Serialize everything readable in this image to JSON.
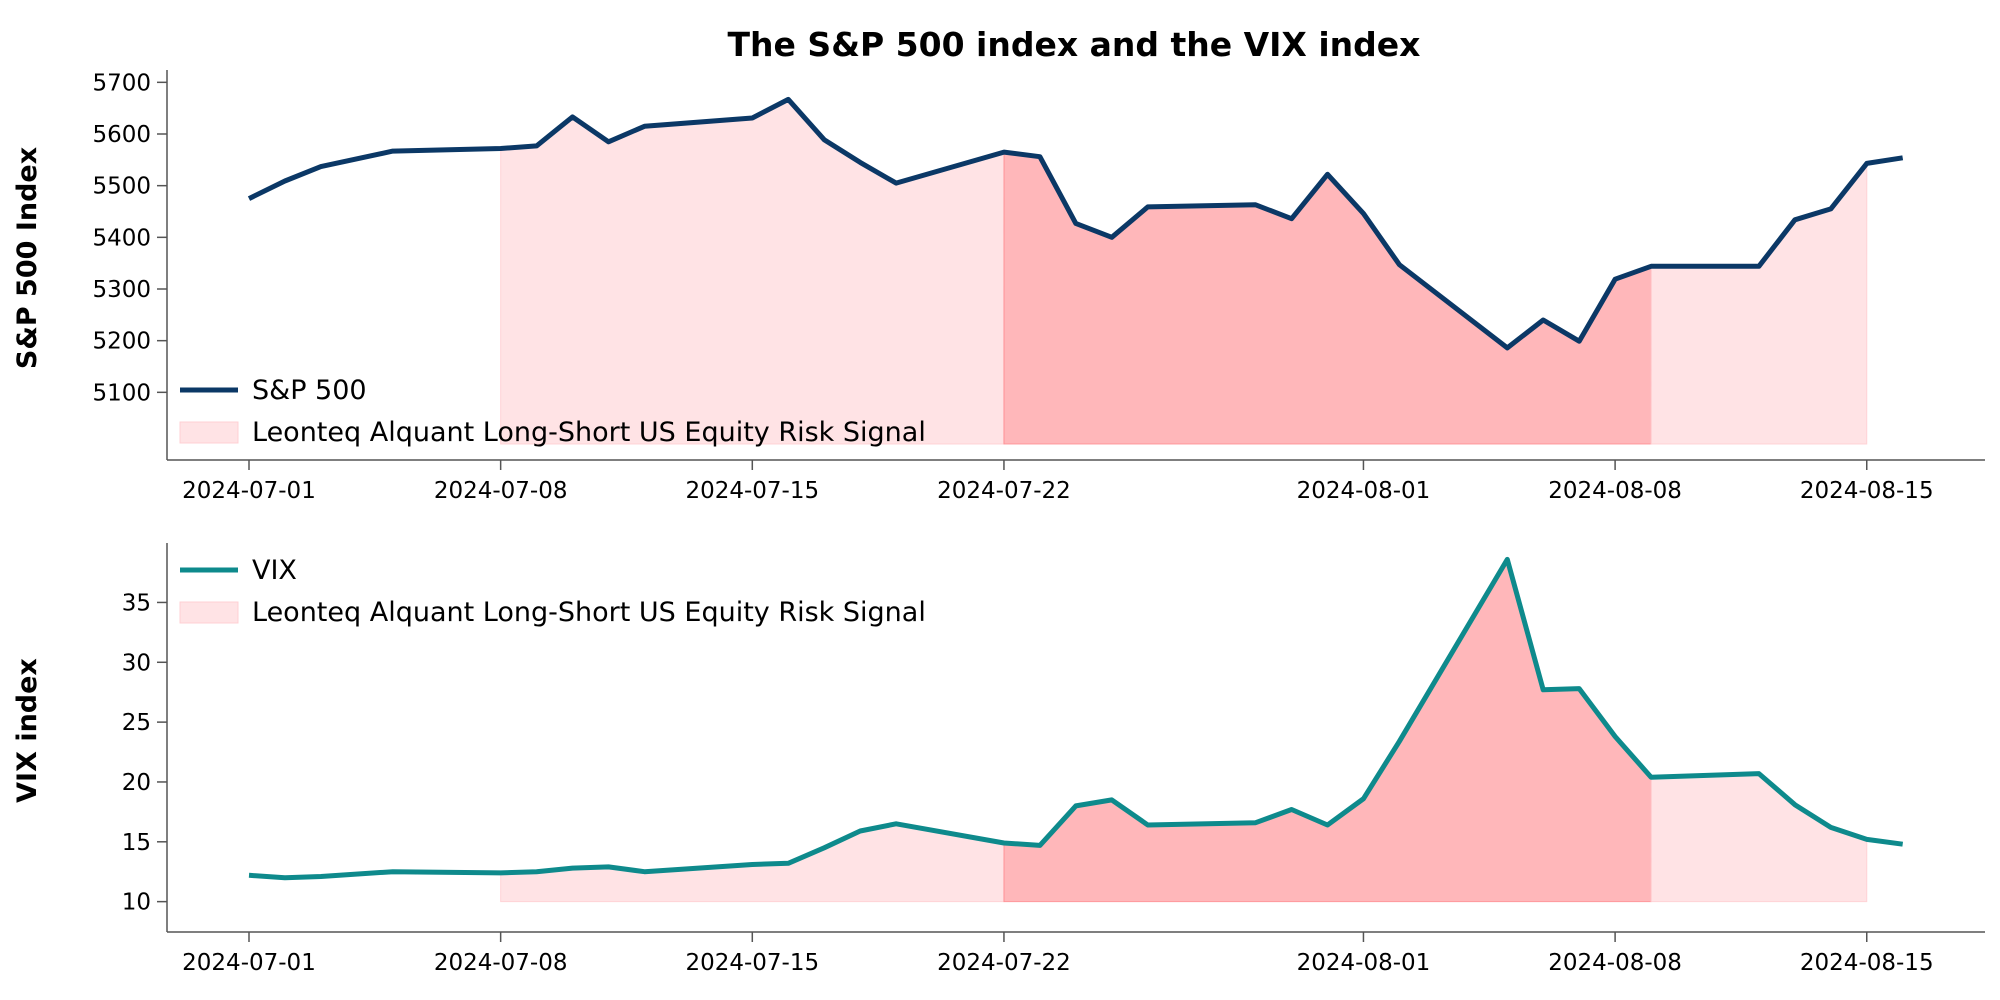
{
  "title": "The S&P 500 index and the VIX index",
  "colors": {
    "sp500": "#0b3866",
    "vix": "#0e8a8c",
    "signal_light": "#ffcccf",
    "signal_dark": "#ff8a8f"
  },
  "chart_data": [
    {
      "type": "line",
      "ylabel": "S&P 500 Index",
      "ylim": [
        5000,
        5720
      ],
      "yticks": [
        5100,
        5200,
        5300,
        5400,
        5500,
        5600,
        5700
      ],
      "x_ticks": [
        "2024-07-01",
        "2024-07-08",
        "2024-07-15",
        "2024-07-22",
        "2024-08-01",
        "2024-08-08",
        "2024-08-15"
      ],
      "legend": {
        "position": "lower-left",
        "line_label": "S&P 500",
        "band_label": "Leonteq Alquant Long-Short US Equity Risk Signal"
      },
      "series": [
        {
          "name": "S&P 500",
          "x": [
            "2024-07-01",
            "2024-07-02",
            "2024-07-03",
            "2024-07-05",
            "2024-07-08",
            "2024-07-09",
            "2024-07-10",
            "2024-07-11",
            "2024-07-12",
            "2024-07-15",
            "2024-07-16",
            "2024-07-17",
            "2024-07-18",
            "2024-07-19",
            "2024-07-22",
            "2024-07-23",
            "2024-07-24",
            "2024-07-25",
            "2024-07-26",
            "2024-07-29",
            "2024-07-30",
            "2024-07-31",
            "2024-08-01",
            "2024-08-02",
            "2024-08-05",
            "2024-08-06",
            "2024-08-07",
            "2024-08-08",
            "2024-08-09",
            "2024-08-12",
            "2024-08-13",
            "2024-08-14",
            "2024-08-15",
            "2024-08-16"
          ],
          "values": [
            5475,
            5509,
            5537,
            5567,
            5572,
            5577,
            5633,
            5585,
            5615,
            5631,
            5667,
            5589,
            5545,
            5505,
            5565,
            5556,
            5427,
            5400,
            5459,
            5463,
            5436,
            5522,
            5446,
            5347,
            5186,
            5240,
            5199,
            5319,
            5344,
            5344,
            5434,
            5455,
            5543,
            5554
          ]
        }
      ],
      "bands": [
        {
          "start": "2024-07-08",
          "end": "2024-07-22",
          "level": "light"
        },
        {
          "start": "2024-07-22",
          "end": "2024-08-09",
          "level": "dark"
        },
        {
          "start": "2024-08-09",
          "end": "2024-08-15",
          "level": "light"
        }
      ]
    },
    {
      "type": "line",
      "ylabel": "VIX index",
      "ylim": [
        8.8,
        39.8
      ],
      "yticks": [
        10,
        15,
        20,
        25,
        30,
        35
      ],
      "x_ticks": [
        "2024-07-01",
        "2024-07-08",
        "2024-07-15",
        "2024-07-22",
        "2024-08-01",
        "2024-08-08",
        "2024-08-15"
      ],
      "legend": {
        "position": "upper-left",
        "line_label": "VIX",
        "band_label": "Leonteq Alquant Long-Short US Equity Risk Signal"
      },
      "series": [
        {
          "name": "VIX",
          "x": [
            "2024-07-01",
            "2024-07-02",
            "2024-07-03",
            "2024-07-05",
            "2024-07-08",
            "2024-07-09",
            "2024-07-10",
            "2024-07-11",
            "2024-07-12",
            "2024-07-15",
            "2024-07-16",
            "2024-07-17",
            "2024-07-18",
            "2024-07-19",
            "2024-07-22",
            "2024-07-23",
            "2024-07-24",
            "2024-07-25",
            "2024-07-26",
            "2024-07-29",
            "2024-07-30",
            "2024-07-31",
            "2024-08-01",
            "2024-08-02",
            "2024-08-05",
            "2024-08-06",
            "2024-08-07",
            "2024-08-08",
            "2024-08-09",
            "2024-08-12",
            "2024-08-13",
            "2024-08-14",
            "2024-08-15",
            "2024-08-16"
          ],
          "values": [
            12.2,
            12.0,
            12.1,
            12.5,
            12.4,
            12.5,
            12.8,
            12.9,
            12.5,
            13.1,
            13.2,
            14.5,
            15.9,
            16.5,
            14.9,
            14.7,
            18.0,
            18.5,
            16.4,
            16.6,
            17.7,
            16.4,
            18.6,
            23.4,
            38.6,
            27.7,
            27.8,
            23.8,
            20.4,
            20.7,
            18.1,
            16.2,
            15.2,
            14.8
          ]
        }
      ],
      "bands": [
        {
          "start": "2024-07-08",
          "end": "2024-07-22",
          "level": "light"
        },
        {
          "start": "2024-07-22",
          "end": "2024-08-09",
          "level": "dark"
        },
        {
          "start": "2024-08-09",
          "end": "2024-08-15",
          "level": "light"
        }
      ]
    }
  ]
}
